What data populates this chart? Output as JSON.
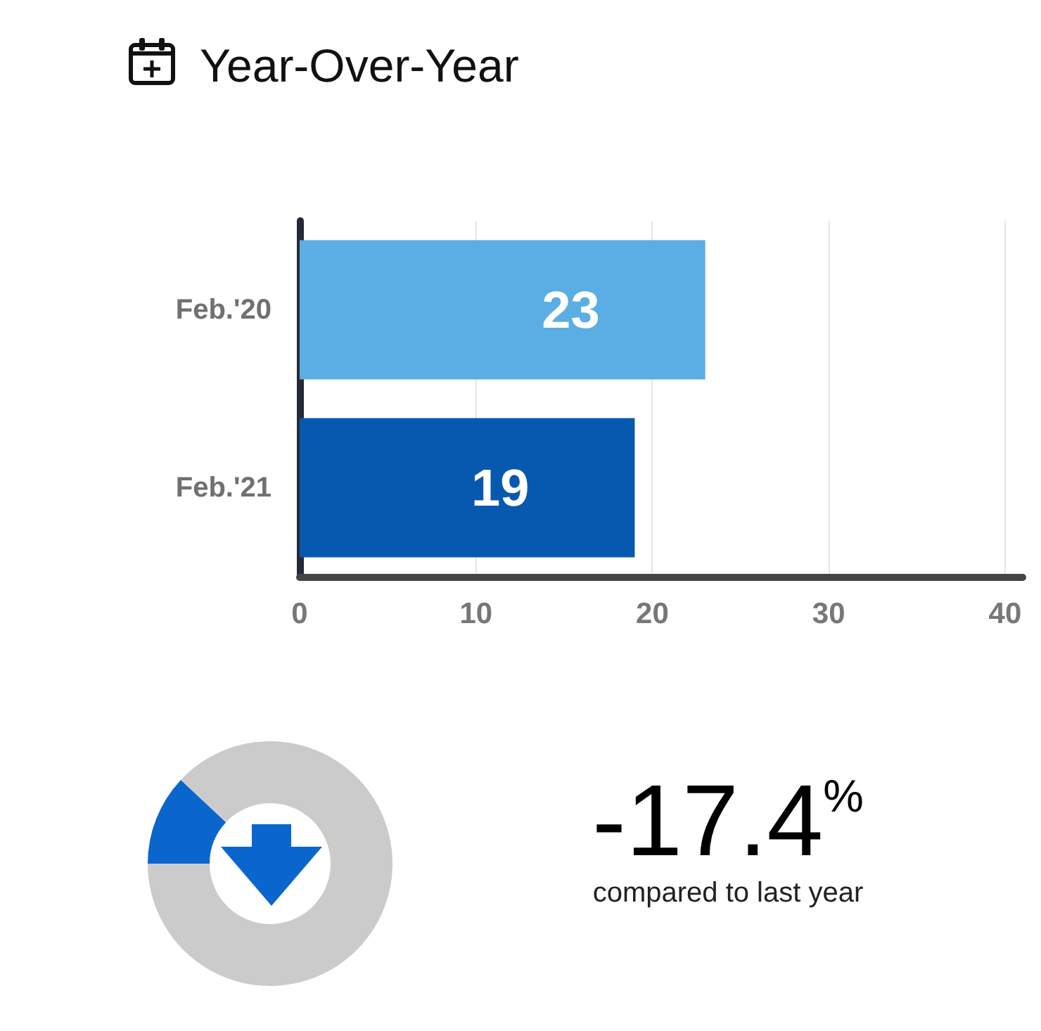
{
  "chart_data": [
    {
      "type": "bar",
      "title": "Year-Over-Year",
      "orientation": "horizontal",
      "categories": [
        "Feb.'20",
        "Feb.'21"
      ],
      "values": [
        23,
        19
      ],
      "colors": [
        "#5aaee3",
        "#0759b0"
      ],
      "xlim": [
        0,
        41
      ],
      "xticks": [
        0,
        10,
        20,
        30,
        40
      ],
      "grid": "x",
      "data_labels": true
    },
    {
      "type": "donut",
      "categories": [
        null,
        null
      ],
      "values": [
        12,
        88
      ],
      "colors": [
        "#0a66cc",
        "#cbcbcb"
      ],
      "annotations": [
        "-17.4$^{%}$",
        "compared to last year"
      ]
    }
  ]
}
